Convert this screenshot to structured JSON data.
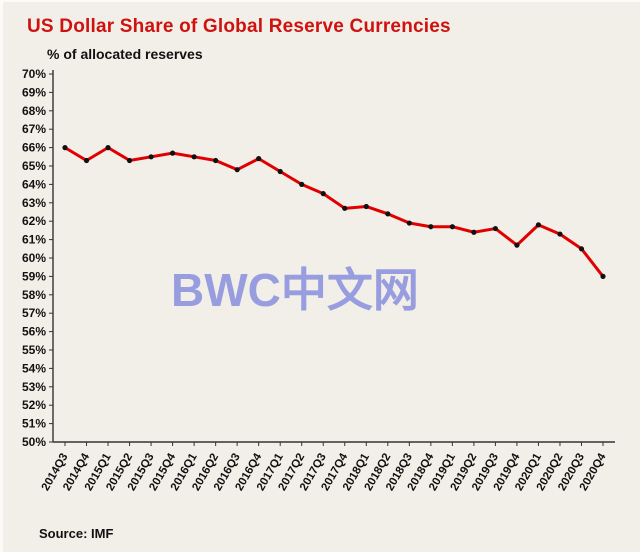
{
  "header": {
    "title": "US Dollar Share of Global  Reserve Currencies",
    "subtitle": "% of allocated reserves"
  },
  "footer": {
    "source_label": "Source: IMF"
  },
  "watermark_text": "BWC中文网",
  "colors": {
    "title": "#cf1210",
    "line": "#e00000",
    "marker": "#111111",
    "axis": "#333333",
    "watermark": "#7b82dd",
    "background": "#f2efe8"
  },
  "chart_data": {
    "type": "line",
    "title": "US Dollar Share of Global Reserve Currencies",
    "xlabel": "",
    "ylabel": "% of allocated reserves",
    "ylim": [
      50,
      70
    ],
    "ytick_step": 1,
    "ytick_suffix": "%",
    "grid": false,
    "legend": "none",
    "categories": [
      "2014Q3",
      "2014Q4",
      "2015Q1",
      "2015Q2",
      "2015Q3",
      "2015Q4",
      "2016Q1",
      "2016Q2",
      "2016Q3",
      "2016Q4",
      "2017Q1",
      "2017Q2",
      "2017Q3",
      "2017Q4",
      "2018Q1",
      "2018Q2",
      "2018Q3",
      "2018Q4",
      "2019Q1",
      "2019Q2",
      "2019Q3",
      "2019Q4",
      "2020Q1",
      "2020Q2",
      "2020Q3",
      "2020Q4"
    ],
    "values": [
      66.0,
      65.3,
      66.0,
      65.3,
      65.5,
      65.7,
      65.5,
      65.3,
      64.8,
      65.4,
      64.7,
      64.0,
      63.5,
      62.7,
      62.8,
      62.4,
      61.9,
      61.7,
      61.7,
      61.4,
      61.6,
      60.7,
      61.8,
      61.3,
      60.5,
      59.0
    ]
  }
}
